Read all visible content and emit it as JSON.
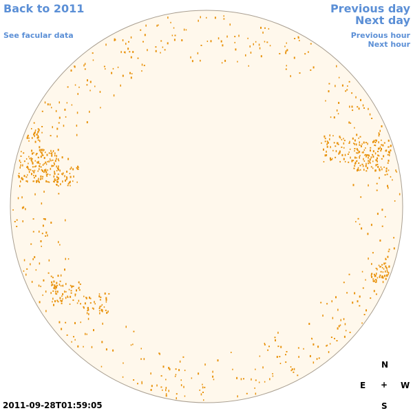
{
  "nav": {
    "back": "Back to 2011",
    "facular": "See facular data",
    "previous_day": "Previous day",
    "next_day": "Next day",
    "previous_hour": "Previous hour",
    "next_hour": "Next hour"
  },
  "timestamp": "2011-09-28T01:59:05",
  "compass": {
    "north": "N",
    "east": "E",
    "center": "+",
    "west": "W",
    "south": "S"
  },
  "colors": {
    "disk_fill": "#fff8ec",
    "disk_stroke": "#a89e90",
    "marker": "#e8920c",
    "link": "#5b8fd6"
  }
}
